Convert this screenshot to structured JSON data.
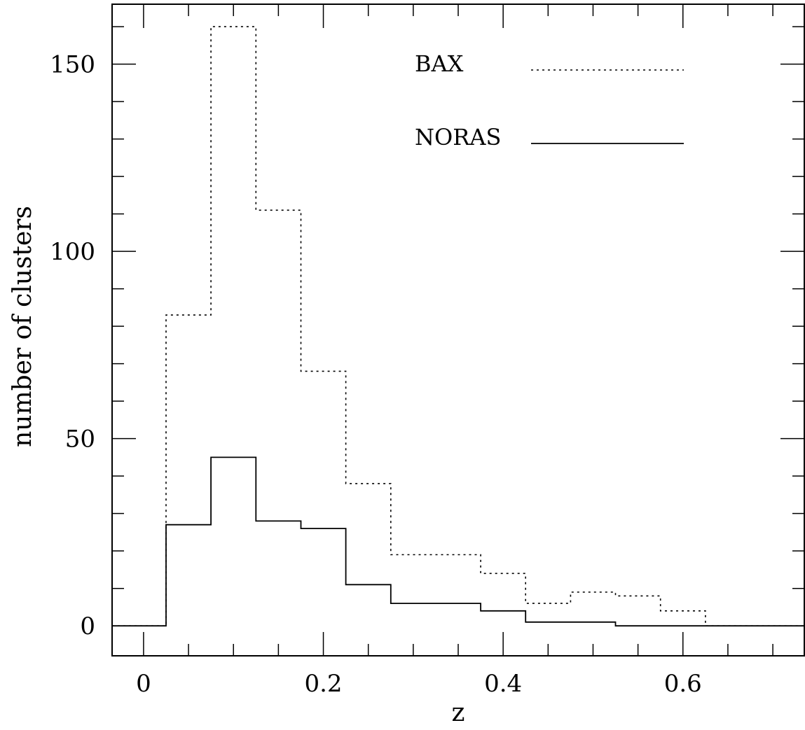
{
  "chart_data": {
    "type": "histogram",
    "xlabel": "z",
    "ylabel": "number of clusters",
    "xlim": [
      -0.035,
      0.735
    ],
    "ylim": [
      -8,
      166
    ],
    "xticks_major": [
      0,
      0.2,
      0.4,
      0.6
    ],
    "xtick_labels": [
      "0",
      "0.2",
      "0.4",
      "0.6"
    ],
    "xticks_minor_step": 0.05,
    "yticks_major": [
      0,
      50,
      100,
      150
    ],
    "ytick_labels": [
      "0",
      "50",
      "100",
      "150"
    ],
    "yticks_minor_step": 10,
    "legend_placement": "top-right",
    "bin_edges": [
      -0.035,
      0.025,
      0.075,
      0.125,
      0.175,
      0.225,
      0.275,
      0.325,
      0.375,
      0.425,
      0.475,
      0.525,
      0.575,
      0.625,
      0.735
    ],
    "series": [
      {
        "name": "BAX",
        "style": "dotted",
        "values": [
          0,
          83,
          160,
          111,
          68,
          38,
          19,
          19,
          14,
          6,
          9,
          8,
          4,
          0
        ]
      },
      {
        "name": "NORAS",
        "style": "solid",
        "values": [
          0,
          27,
          45,
          28,
          26,
          11,
          6,
          6,
          4,
          1,
          1,
          0,
          0,
          0
        ]
      }
    ]
  }
}
